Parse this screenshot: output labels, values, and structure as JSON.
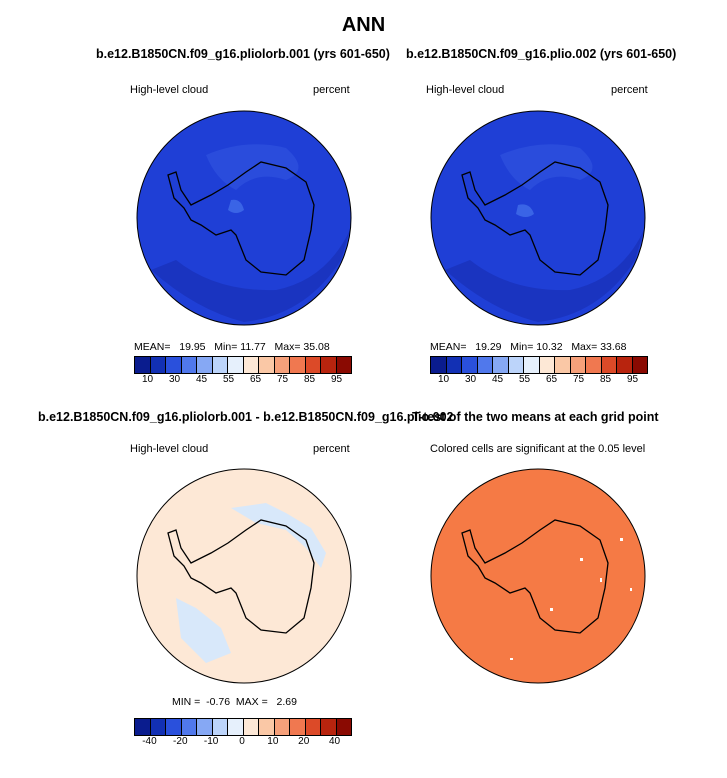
{
  "title": "ANN",
  "panels": {
    "p1": {
      "title": "b.e12.B1850CN.f09_g16.pliolorb.001 (yrs 601-650)",
      "left": "High-level cloud",
      "right": "percent",
      "stats": {
        "mean_label": "MEAN=",
        "mean": "19.95",
        "min_label": "Min=",
        "min": "11.77",
        "max_label": "Max=",
        "max": "35.08"
      }
    },
    "p2": {
      "title": "b.e12.B1850CN.f09_g16.plio.002 (yrs 601-650)",
      "left": "High-level cloud",
      "right": "percent",
      "stats": {
        "mean_label": "MEAN=",
        "mean": "19.29",
        "min_label": "Min=",
        "min": "10.32",
        "max_label": "Max=",
        "max": "33.68"
      }
    },
    "p3": {
      "title": "b.e12.B1850CN.f09_g16.pliolorb.001 - b.e12.B1850CN.f09_g16.plio.002",
      "left": "High-level cloud",
      "right": "percent",
      "stats": {
        "min_label": "MIN =",
        "min": "-0.76",
        "max_label": "MAX =",
        "max": "2.69"
      }
    },
    "p4": {
      "title": "T-test of the two means at each grid point",
      "left": "Colored cells are significant at the 0.05 level"
    }
  },
  "colorbar_abs": {
    "colors": [
      "#0a1c8e",
      "#1230b4",
      "#2a50dc",
      "#5078ec",
      "#86a8f4",
      "#bcd4fa",
      "#e6f0fc",
      "#fde8d6",
      "#fac8a6",
      "#f6a07a",
      "#f07850",
      "#dc4a28",
      "#b8240e",
      "#8a0a02"
    ],
    "ticks": [
      "10",
      "30",
      "45",
      "55",
      "65",
      "75",
      "85",
      "95"
    ]
  },
  "colorbar_diff": {
    "colors": [
      "#0a1c8e",
      "#1230b4",
      "#2a50dc",
      "#5078ec",
      "#86a8f4",
      "#bcd4fa",
      "#e6f0fc",
      "#fde8d6",
      "#fac8a6",
      "#f6a07a",
      "#f07850",
      "#dc4a28",
      "#b8240e",
      "#8a0a02"
    ],
    "ticks": [
      "-40",
      "-20",
      "-10",
      "0",
      "10",
      "20",
      "40"
    ]
  },
  "map_colors": {
    "ocean_abs": "#1f3fd6",
    "dark_band": "#1a34c0",
    "light_patch": "#3a64e6",
    "diff_bg": "#fde8d6",
    "diff_neg": "#d8e8fa",
    "ttest": "#f57a45",
    "coast": "#000000"
  }
}
